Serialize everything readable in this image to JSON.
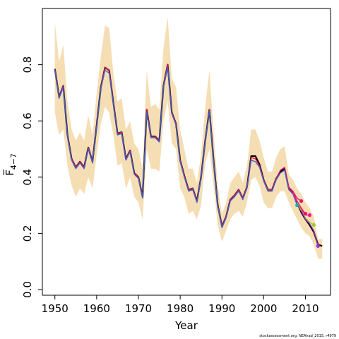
{
  "chart_data": {
    "type": "line",
    "title": "",
    "xlabel": "Year",
    "ylabel": "F̅",
    "ylabel_sub": "4−7",
    "xlim": [
      1947,
      2016
    ],
    "ylim": [
      -0.02,
      1.0
    ],
    "xticks": [
      1950,
      1960,
      1970,
      1980,
      1990,
      2000,
      2010
    ],
    "yticks": [
      0.0,
      0.2,
      0.4,
      0.6,
      0.8
    ],
    "ytick_labels": [
      "0.0",
      "0.2",
      "0.4",
      "0.6",
      "0.8"
    ],
    "grid": false,
    "legend": "none",
    "credit": "stockassessment.org, NEAhad_2015, r4979",
    "band": {
      "color": "#f5deb3",
      "x": [
        1950,
        1951,
        1952,
        1953,
        1954,
        1955,
        1956,
        1957,
        1958,
        1959,
        1960,
        1961,
        1962,
        1963,
        1964,
        1965,
        1966,
        1967,
        1968,
        1969,
        1970,
        1971,
        1972,
        1973,
        1974,
        1975,
        1976,
        1977,
        1978,
        1979,
        1980,
        1981,
        1982,
        1983,
        1984,
        1985,
        1986,
        1987,
        1988,
        1989,
        1990,
        1991,
        1992,
        1993,
        1994,
        1995,
        1996,
        1997,
        1998,
        1999,
        2000,
        2001,
        2002,
        2003,
        2004,
        2005,
        2006,
        2007,
        2008,
        2009,
        2010,
        2011,
        2012,
        2013,
        2014
      ],
      "upper": [
        0.95,
        0.81,
        0.87,
        0.67,
        0.57,
        0.53,
        0.56,
        0.53,
        0.62,
        0.55,
        0.7,
        0.83,
        0.94,
        0.93,
        0.77,
        0.67,
        0.68,
        0.57,
        0.6,
        0.52,
        0.5,
        0.43,
        0.78,
        0.65,
        0.66,
        0.64,
        0.86,
        0.97,
        0.75,
        0.72,
        0.57,
        0.5,
        0.43,
        0.43,
        0.38,
        0.48,
        0.65,
        0.78,
        0.56,
        0.37,
        0.27,
        0.31,
        0.38,
        0.4,
        0.42,
        0.38,
        0.44,
        0.57,
        0.57,
        0.53,
        0.47,
        0.42,
        0.42,
        0.47,
        0.5,
        0.51,
        0.41,
        0.39,
        0.36,
        0.34,
        0.31,
        0.29,
        0.26,
        0.18,
        0.18
      ],
      "lower": [
        0.63,
        0.55,
        0.57,
        0.44,
        0.37,
        0.33,
        0.36,
        0.34,
        0.4,
        0.36,
        0.48,
        0.59,
        0.65,
        0.63,
        0.55,
        0.44,
        0.45,
        0.36,
        0.4,
        0.33,
        0.31,
        0.25,
        0.5,
        0.43,
        0.43,
        0.42,
        0.6,
        0.67,
        0.52,
        0.5,
        0.36,
        0.33,
        0.27,
        0.28,
        0.25,
        0.3,
        0.45,
        0.5,
        0.37,
        0.23,
        0.17,
        0.21,
        0.25,
        0.27,
        0.28,
        0.26,
        0.31,
        0.39,
        0.4,
        0.37,
        0.31,
        0.29,
        0.29,
        0.33,
        0.35,
        0.35,
        0.31,
        0.28,
        0.25,
        0.22,
        0.2,
        0.19,
        0.16,
        0.11,
        0.11
      ]
    },
    "series": [
      {
        "color": "#000000",
        "width": 2.2,
        "x": [
          1950,
          1951,
          1952,
          1953,
          1954,
          1955,
          1956,
          1957,
          1958,
          1959,
          1960,
          1961,
          1962,
          1963,
          1964,
          1965,
          1966,
          1967,
          1968,
          1969,
          1970,
          1971,
          1972,
          1973,
          1974,
          1975,
          1976,
          1977,
          1978,
          1979,
          1980,
          1981,
          1982,
          1983,
          1984,
          1985,
          1986,
          1987,
          1988,
          1989,
          1990,
          1991,
          1992,
          1993,
          1994,
          1995,
          1996,
          1997,
          1998,
          1999,
          2000,
          2001,
          2002,
          2003,
          2004,
          2005,
          2006,
          2007,
          2008,
          2009,
          2010,
          2011,
          2012,
          2013,
          2014
        ],
        "values": [
          0.785,
          0.685,
          0.725,
          0.55,
          0.465,
          0.435,
          0.455,
          0.435,
          0.505,
          0.455,
          0.585,
          0.72,
          0.79,
          0.78,
          0.665,
          0.555,
          0.56,
          0.465,
          0.495,
          0.415,
          0.4,
          0.33,
          0.64,
          0.545,
          0.545,
          0.53,
          0.725,
          0.8,
          0.63,
          0.59,
          0.46,
          0.405,
          0.355,
          0.36,
          0.315,
          0.4,
          0.53,
          0.64,
          0.46,
          0.3,
          0.225,
          0.26,
          0.32,
          0.335,
          0.355,
          0.325,
          0.365,
          0.475,
          0.475,
          0.445,
          0.39,
          0.355,
          0.355,
          0.395,
          0.42,
          0.43,
          0.36,
          0.345,
          0.31,
          0.275,
          0.25,
          0.23,
          0.205,
          0.16,
          0.155
        ]
      },
      {
        "color": "#e8155f",
        "width": 1.3,
        "x": [
          1950,
          1951,
          1952,
          1953,
          1954,
          1955,
          1956,
          1957,
          1958,
          1959,
          1960,
          1961,
          1962,
          1963,
          1964,
          1965,
          1966,
          1967,
          1968,
          1969,
          1970,
          1971,
          1972,
          1973,
          1974,
          1975,
          1976,
          1977,
          1978,
          1979,
          1980,
          1981,
          1982,
          1983,
          1984,
          1985,
          1986,
          1987,
          1988,
          1989,
          1990,
          1991,
          1992,
          1993,
          1994,
          1995,
          1996,
          1997,
          1998,
          1999,
          2000,
          2001,
          2002,
          2003,
          2004,
          2005,
          2006,
          2007,
          2008,
          2009
        ],
        "values": [
          0.785,
          0.685,
          0.725,
          0.55,
          0.465,
          0.435,
          0.455,
          0.435,
          0.505,
          0.455,
          0.585,
          0.72,
          0.79,
          0.78,
          0.665,
          0.555,
          0.56,
          0.465,
          0.495,
          0.415,
          0.4,
          0.33,
          0.64,
          0.545,
          0.545,
          0.53,
          0.725,
          0.8,
          0.63,
          0.59,
          0.46,
          0.405,
          0.355,
          0.36,
          0.315,
          0.4,
          0.53,
          0.64,
          0.46,
          0.3,
          0.225,
          0.26,
          0.32,
          0.335,
          0.355,
          0.325,
          0.365,
          0.47,
          0.465,
          0.44,
          0.39,
          0.355,
          0.355,
          0.395,
          0.425,
          0.435,
          0.365,
          0.35,
          0.325,
          0.315
        ]
      },
      {
        "color": "#3a63c9",
        "width": 1.3,
        "x": [
          1950,
          1951,
          1952,
          1953,
          1954,
          1955,
          1956,
          1957,
          1958,
          1959,
          1960,
          1961,
          1962,
          1963,
          1964,
          1965,
          1966,
          1967,
          1968,
          1969,
          1970,
          1971,
          1972,
          1973,
          1974,
          1975,
          1976,
          1977,
          1978,
          1979,
          1980,
          1981,
          1982,
          1983,
          1984,
          1985,
          1986,
          1987,
          1988,
          1989,
          1990,
          1991,
          1992,
          1993,
          1994,
          1995,
          1996,
          1997,
          1998,
          1999,
          2000,
          2001,
          2002,
          2003,
          2004,
          2005,
          2006,
          2007,
          2008
        ],
        "values": [
          0.78,
          0.68,
          0.72,
          0.545,
          0.46,
          0.43,
          0.45,
          0.43,
          0.5,
          0.45,
          0.58,
          0.715,
          0.78,
          0.77,
          0.66,
          0.55,
          0.555,
          0.46,
          0.49,
          0.41,
          0.395,
          0.325,
          0.63,
          0.54,
          0.54,
          0.525,
          0.72,
          0.79,
          0.625,
          0.585,
          0.455,
          0.4,
          0.35,
          0.355,
          0.31,
          0.395,
          0.525,
          0.635,
          0.455,
          0.295,
          0.22,
          0.255,
          0.315,
          0.33,
          0.35,
          0.32,
          0.36,
          0.46,
          0.455,
          0.435,
          0.385,
          0.35,
          0.35,
          0.39,
          0.415,
          0.425,
          0.355,
          0.34,
          0.3
        ]
      },
      {
        "color": "#e8155f",
        "width": 1.3,
        "x": [
          2006,
          2007,
          2008,
          2009,
          2010
        ],
        "values": [
          0.36,
          0.345,
          0.315,
          0.29,
          0.27
        ]
      },
      {
        "color": "#ff1493",
        "width": 1.3,
        "x": [
          2007,
          2008,
          2009,
          2010,
          2011
        ],
        "values": [
          0.345,
          0.31,
          0.285,
          0.265,
          0.265
        ]
      },
      {
        "color": "#9acd32",
        "width": 1.3,
        "x": [
          2008,
          2009,
          2010,
          2011,
          2012
        ],
        "values": [
          0.31,
          0.28,
          0.255,
          0.24,
          0.23
        ]
      },
      {
        "color": "#9932cc",
        "width": 1.3,
        "x": [
          2009,
          2010,
          2011,
          2012,
          2013
        ],
        "values": [
          0.28,
          0.25,
          0.235,
          0.21,
          0.155
        ]
      }
    ],
    "points": [
      {
        "x": 2008,
        "y": 0.3,
        "color": "#1ea7c8"
      },
      {
        "x": 2009,
        "y": 0.315,
        "color": "#e8155f"
      },
      {
        "x": 2010,
        "y": 0.27,
        "color": "#e8155f"
      },
      {
        "x": 2011,
        "y": 0.265,
        "color": "#ff1493"
      },
      {
        "x": 2012,
        "y": 0.23,
        "color": "#9acd32"
      },
      {
        "x": 2013,
        "y": 0.155,
        "color": "#9932cc"
      }
    ]
  }
}
